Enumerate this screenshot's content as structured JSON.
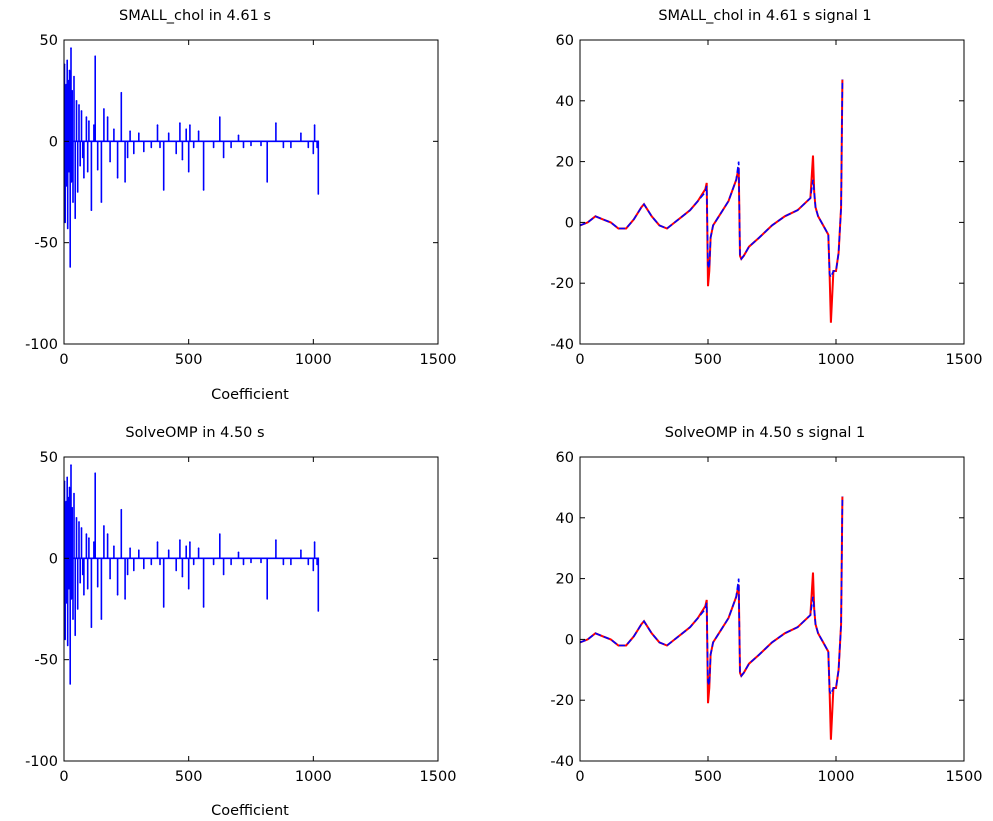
{
  "figure": {
    "background": "#ffffff",
    "axis_color": "#000000",
    "blue": "#0000ff",
    "red": "#ff0000"
  },
  "chart_data": [
    {
      "type": "line",
      "title": "SMALL_chol in 4.61 s",
      "xlabel": "Coefficient",
      "ylabel": "",
      "xlim": [
        0,
        1500
      ],
      "ylim": [
        -100,
        50
      ],
      "xticks": [
        "0",
        "500",
        "1000",
        "1500"
      ],
      "yticks": [
        "-100",
        "-50",
        "0",
        "50"
      ],
      "grid": false,
      "legend": "none",
      "series": [
        {
          "color": "#0000ff",
          "style": "stems",
          "x": [
            2,
            5,
            8,
            10,
            13,
            15,
            18,
            20,
            22,
            25,
            28,
            30,
            33,
            36,
            40,
            45,
            50,
            55,
            60,
            65,
            70,
            75,
            80,
            90,
            95,
            100,
            110,
            120,
            125,
            135,
            150,
            160,
            175,
            185,
            200,
            215,
            230,
            245,
            255,
            265,
            280,
            300,
            320,
            350,
            375,
            385,
            400,
            420,
            450,
            465,
            475,
            490,
            500,
            505,
            520,
            540,
            560,
            600,
            625,
            640,
            670,
            700,
            720,
            750,
            790,
            815,
            850,
            880,
            910,
            950,
            980,
            1000,
            1005,
            1015,
            1020
          ],
          "y": [
            38,
            -40,
            28,
            -22,
            40,
            -43,
            30,
            -15,
            35,
            -62,
            46,
            -20,
            25,
            -30,
            32,
            -38,
            20,
            -25,
            18,
            -12,
            15,
            -8,
            -18,
            12,
            -15,
            10,
            -34,
            8,
            42,
            -14,
            -30,
            16,
            12,
            -10,
            6,
            -18,
            24,
            -20,
            -8,
            5,
            -6,
            4,
            -5,
            -3,
            8,
            -3,
            -24,
            4,
            -6,
            9,
            -9,
            6,
            -15,
            8,
            -3,
            5,
            -24,
            -3,
            12,
            -8,
            -3,
            3,
            -3,
            -2,
            -2,
            -20,
            9,
            -3,
            -3,
            4,
            -3,
            -6,
            8,
            -3,
            -26
          ]
        }
      ]
    },
    {
      "type": "line",
      "title": "SMALL_chol in 4.61 s signal 1",
      "xlabel": "",
      "ylabel": "",
      "xlim": [
        0,
        1500
      ],
      "ylim": [
        -40,
        60
      ],
      "xticks": [
        "0",
        "500",
        "1000",
        "1500"
      ],
      "yticks": [
        "-40",
        "-20",
        "0",
        "20",
        "40",
        "60"
      ],
      "grid": false,
      "legend": "none",
      "series": [
        {
          "color": "#ff0000",
          "x": [
            0,
            30,
            60,
            90,
            120,
            150,
            180,
            210,
            240,
            250,
            280,
            310,
            340,
            370,
            400,
            430,
            460,
            490,
            495,
            500,
            505,
            510,
            520,
            550,
            580,
            610,
            620,
            625,
            630,
            640,
            660,
            700,
            750,
            800,
            850,
            900,
            910,
            915,
            920,
            930,
            950,
            970,
            975,
            980,
            990,
            1000,
            1010,
            1020,
            1025
          ],
          "y": [
            -1,
            0,
            2,
            1,
            0,
            -2,
            -2,
            1,
            5,
            6,
            2,
            -1,
            -2,
            0,
            2,
            4,
            7,
            11,
            13,
            -21,
            -16,
            -5,
            -1,
            3,
            7,
            14,
            18,
            -11,
            -12,
            -11,
            -8,
            -5,
            -1,
            2,
            4,
            8,
            22,
            10,
            5,
            2,
            -1,
            -4,
            -17,
            -33,
            -16,
            -16,
            -10,
            5,
            47
          ]
        },
        {
          "color": "#0000ff",
          "x": [
            0,
            30,
            60,
            90,
            120,
            150,
            180,
            210,
            240,
            250,
            280,
            310,
            340,
            370,
            400,
            430,
            460,
            490,
            495,
            500,
            505,
            510,
            520,
            550,
            580,
            610,
            620,
            625,
            630,
            640,
            660,
            700,
            750,
            800,
            850,
            900,
            910,
            915,
            920,
            930,
            950,
            970,
            975,
            980,
            990,
            1000,
            1010,
            1020,
            1025
          ],
          "y": [
            -1,
            0,
            2,
            1,
            0,
            -2,
            -2,
            1,
            5,
            6,
            2,
            -1,
            -2,
            0,
            2,
            4,
            7,
            10,
            12,
            -14,
            -15,
            -5,
            -1,
            3,
            7,
            14,
            20,
            -11,
            -12,
            -11,
            -8,
            -5,
            -1,
            2,
            4,
            8,
            14,
            10,
            5,
            2,
            -1,
            -4,
            -17,
            -18,
            -16,
            -16,
            -10,
            5,
            47
          ]
        }
      ]
    },
    {
      "type": "line",
      "title": "SolveOMP in 4.50 s",
      "xlabel": "Coefficient",
      "ylabel": "",
      "xlim": [
        0,
        1500
      ],
      "ylim": [
        -100,
        50
      ],
      "xticks": [
        "0",
        "500",
        "1000",
        "1500"
      ],
      "yticks": [
        "-100",
        "-50",
        "0",
        "50"
      ],
      "grid": false,
      "legend": "none",
      "series": [
        {
          "color": "#0000ff",
          "style": "stems",
          "x": [
            2,
            5,
            8,
            10,
            13,
            15,
            18,
            20,
            22,
            25,
            28,
            30,
            33,
            36,
            40,
            45,
            50,
            55,
            60,
            65,
            70,
            75,
            80,
            90,
            95,
            100,
            110,
            120,
            125,
            135,
            150,
            160,
            175,
            185,
            200,
            215,
            230,
            245,
            255,
            265,
            280,
            300,
            320,
            350,
            375,
            385,
            400,
            420,
            450,
            465,
            475,
            490,
            500,
            505,
            520,
            540,
            560,
            600,
            625,
            640,
            670,
            700,
            720,
            750,
            790,
            815,
            850,
            880,
            910,
            950,
            980,
            1000,
            1005,
            1015,
            1020
          ],
          "y": [
            38,
            -40,
            28,
            -22,
            40,
            -43,
            30,
            -15,
            35,
            -62,
            46,
            -20,
            25,
            -30,
            32,
            -38,
            20,
            -25,
            18,
            -12,
            15,
            -8,
            -18,
            12,
            -15,
            10,
            -34,
            8,
            42,
            -14,
            -30,
            16,
            12,
            -10,
            6,
            -18,
            24,
            -20,
            -8,
            5,
            -6,
            4,
            -5,
            -3,
            8,
            -3,
            -24,
            4,
            -6,
            9,
            -9,
            6,
            -15,
            8,
            -3,
            5,
            -24,
            -3,
            12,
            -8,
            -3,
            3,
            -3,
            -2,
            -2,
            -20,
            9,
            -3,
            -3,
            4,
            -3,
            -6,
            8,
            -3,
            -26
          ]
        }
      ]
    },
    {
      "type": "line",
      "title": "SolveOMP in 4.50 s signal 1",
      "xlabel": "",
      "ylabel": "",
      "xlim": [
        0,
        1500
      ],
      "ylim": [
        -40,
        60
      ],
      "xticks": [
        "0",
        "500",
        "1000",
        "1500"
      ],
      "yticks": [
        "-40",
        "-20",
        "0",
        "20",
        "40",
        "60"
      ],
      "grid": false,
      "legend": "none",
      "series": [
        {
          "color": "#ff0000",
          "x": [
            0,
            30,
            60,
            90,
            120,
            150,
            180,
            210,
            240,
            250,
            280,
            310,
            340,
            370,
            400,
            430,
            460,
            490,
            495,
            500,
            505,
            510,
            520,
            550,
            580,
            610,
            620,
            625,
            630,
            640,
            660,
            700,
            750,
            800,
            850,
            900,
            910,
            915,
            920,
            930,
            950,
            970,
            975,
            980,
            990,
            1000,
            1010,
            1020,
            1025
          ],
          "y": [
            -1,
            0,
            2,
            1,
            0,
            -2,
            -2,
            1,
            5,
            6,
            2,
            -1,
            -2,
            0,
            2,
            4,
            7,
            11,
            13,
            -21,
            -16,
            -5,
            -1,
            3,
            7,
            14,
            18,
            -11,
            -12,
            -11,
            -8,
            -5,
            -1,
            2,
            4,
            8,
            22,
            10,
            5,
            2,
            -1,
            -4,
            -17,
            -33,
            -16,
            -16,
            -10,
            5,
            47
          ]
        },
        {
          "color": "#0000ff",
          "x": [
            0,
            30,
            60,
            90,
            120,
            150,
            180,
            210,
            240,
            250,
            280,
            310,
            340,
            370,
            400,
            430,
            460,
            490,
            495,
            500,
            505,
            510,
            520,
            550,
            580,
            610,
            620,
            625,
            630,
            640,
            660,
            700,
            750,
            800,
            850,
            900,
            910,
            915,
            920,
            930,
            950,
            970,
            975,
            980,
            990,
            1000,
            1010,
            1020,
            1025
          ],
          "y": [
            -1,
            0,
            2,
            1,
            0,
            -2,
            -2,
            1,
            5,
            6,
            2,
            -1,
            -2,
            0,
            2,
            4,
            7,
            10,
            12,
            -14,
            -15,
            -5,
            -1,
            3,
            7,
            14,
            20,
            -11,
            -12,
            -11,
            -8,
            -5,
            -1,
            2,
            4,
            8,
            14,
            10,
            5,
            2,
            -1,
            -4,
            -17,
            -18,
            -16,
            -16,
            -10,
            5,
            47
          ]
        }
      ]
    }
  ]
}
